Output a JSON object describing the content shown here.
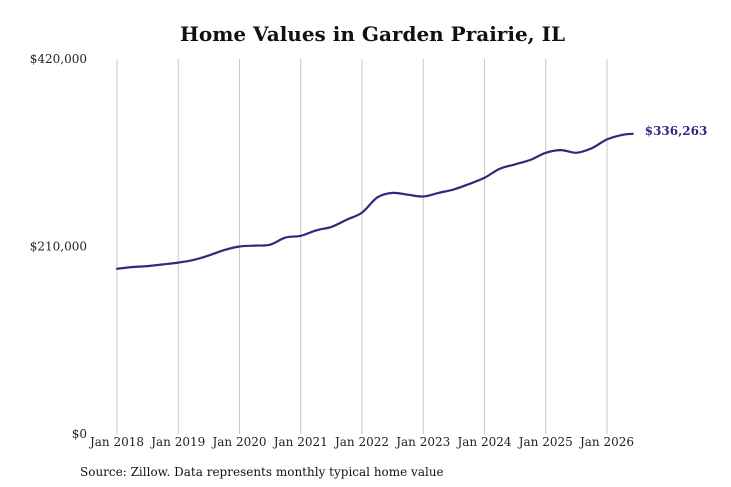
{
  "chart_data": {
    "type": "line",
    "title": "Home Values in Garden Prairie, IL",
    "source": "Source: Zillow. Data represents monthly typical home value",
    "ylim": [
      0,
      420000
    ],
    "y_ticks": [
      "$0",
      "$210,000",
      "$420,000"
    ],
    "y_tick_values": [
      0,
      210000,
      420000
    ],
    "x_ticks": [
      "Jan 2018",
      "Jan 2019",
      "Jan 2020",
      "Jan 2021",
      "Jan 2022",
      "Jan 2023",
      "Jan 2024",
      "Jan 2025",
      "Jan 2026"
    ],
    "x_tick_values": [
      2018,
      2019,
      2020,
      2021,
      2022,
      2023,
      2024,
      2025,
      2026
    ],
    "grid": "vertical",
    "line_color": "#2e2a7f",
    "end_label": "$336,263",
    "series": [
      {
        "x": [
          2018.0,
          2018.25,
          2018.5,
          2018.75,
          2019.0,
          2019.25,
          2019.5,
          2019.75,
          2020.0,
          2020.25,
          2020.5,
          2020.75,
          2021.0,
          2021.25,
          2021.5,
          2021.75,
          2022.0,
          2022.25,
          2022.5,
          2022.75,
          2023.0,
          2023.25,
          2023.5,
          2023.75,
          2024.0,
          2024.25,
          2024.5,
          2024.75,
          2025.0,
          2025.25,
          2025.5,
          2025.75,
          2026.0,
          2026.25,
          2026.42
        ],
        "y": [
          185000,
          187000,
          188000,
          190000,
          192000,
          195000,
          200000,
          206000,
          210000,
          211000,
          212000,
          220000,
          222000,
          228000,
          232000,
          240000,
          248000,
          265000,
          270000,
          268000,
          266000,
          270000,
          274000,
          280000,
          287000,
          297000,
          302000,
          307000,
          315000,
          318000,
          315000,
          320000,
          330000,
          335000,
          336263
        ]
      }
    ]
  }
}
